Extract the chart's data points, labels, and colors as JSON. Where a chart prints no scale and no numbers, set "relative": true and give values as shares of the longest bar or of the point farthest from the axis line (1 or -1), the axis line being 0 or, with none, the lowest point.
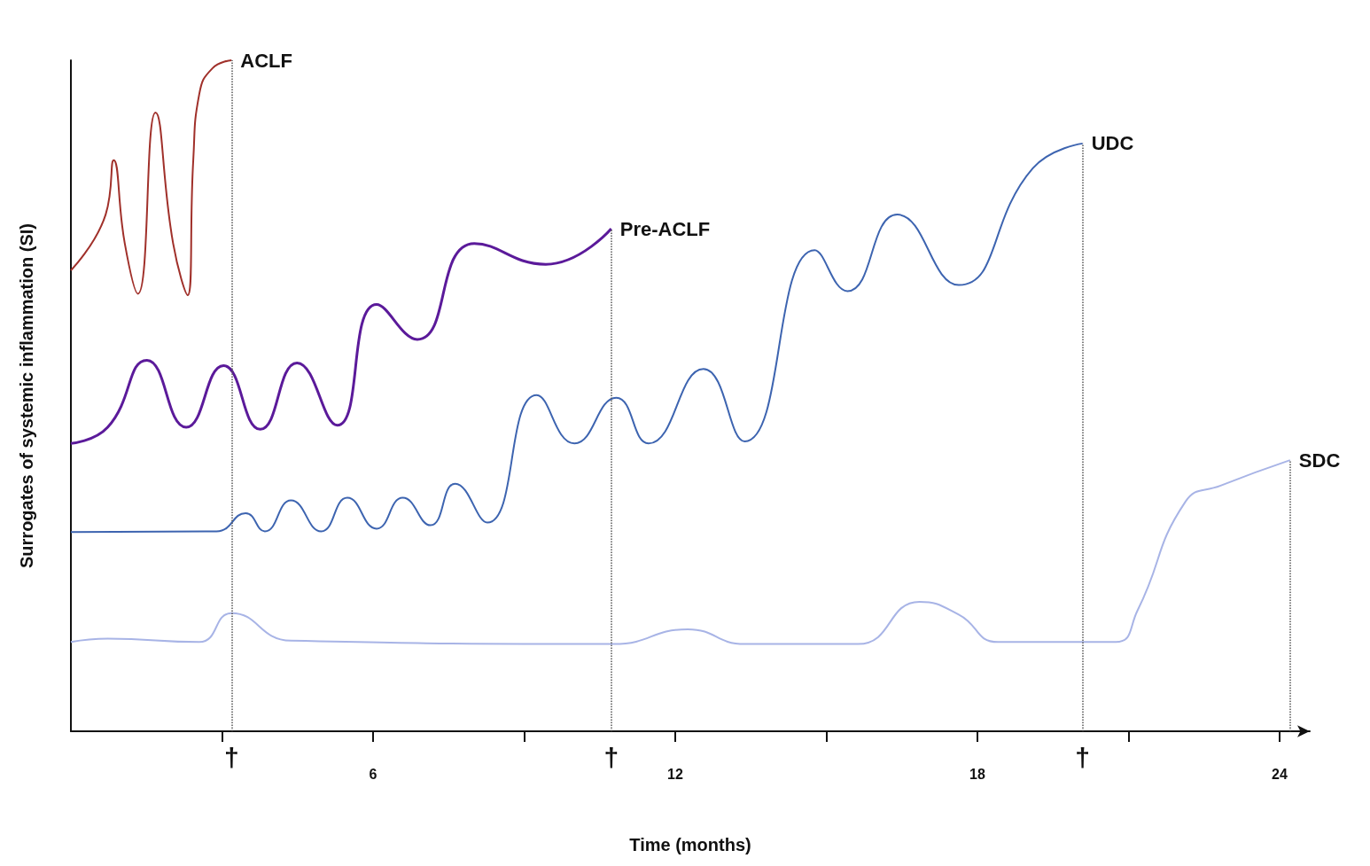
{
  "chart_data": {
    "type": "line",
    "relative": true,
    "xlabel": "Time (months)",
    "ylabel": "Surrogates of systemic inflammation (SI)",
    "marker": "none",
    "legend": false,
    "grid": false,
    "tick_labels": "x",
    "xlim": [
      0,
      24.6
    ],
    "xticks": [
      {
        "value": 3,
        "label": null
      },
      6,
      {
        "value": 9,
        "label": null
      },
      12,
      {
        "value": 15,
        "label": null
      },
      18,
      {
        "value": 21,
        "label": null
      },
      24
    ],
    "series": [
      {
        "name": "ACLF",
        "color": "#a0302a",
        "x": [
          0,
          0.69,
          0.85,
          1.07,
          1.33,
          1.68,
          2.03,
          2.32,
          2.43,
          2.55,
          2.81,
          3.19
        ],
        "values": [
          0.687,
          0.77,
          0.851,
          0.727,
          0.652,
          0.922,
          0.727,
          0.65,
          0.851,
          0.95,
          0.988,
          1.0
        ]
      },
      {
        "name": "Pre-ACLF",
        "color": "#5b1a9a",
        "x": [
          0,
          0.73,
          1.51,
          2.29,
          3.03,
          3.76,
          4.49,
          5.29,
          6.07,
          6.88,
          8.01,
          9.43,
          10.73
        ],
        "values": [
          0.429,
          0.453,
          0.553,
          0.453,
          0.545,
          0.45,
          0.549,
          0.456,
          0.636,
          0.584,
          0.727,
          0.696,
          0.749
        ]
      },
      {
        "name": "UDC",
        "color": "#3d64b0",
        "x": [
          0,
          2.89,
          3.47,
          3.85,
          4.37,
          4.97,
          5.49,
          6.07,
          6.59,
          7.14,
          7.63,
          8.27,
          9.25,
          10.0,
          10.83,
          11.47,
          12.56,
          13.38,
          14.77,
          15.42,
          16.41,
          17.63,
          19.1,
          20.09
        ],
        "values": [
          0.297,
          0.298,
          0.325,
          0.298,
          0.344,
          0.298,
          0.348,
          0.302,
          0.348,
          0.307,
          0.369,
          0.311,
          0.501,
          0.429,
          0.497,
          0.429,
          0.54,
          0.432,
          0.717,
          0.656,
          0.77,
          0.665,
          0.839,
          0.876
        ]
      },
      {
        "name": "SDC",
        "color": "#a8b4e6",
        "x": [
          0,
          0.73,
          2.55,
          3.19,
          4.37,
          10.78,
          12.25,
          13.38,
          15.63,
          16.85,
          17.63,
          18.41,
          20.75,
          21.18,
          22.13,
          22.83,
          24.21
        ],
        "values": [
          0.133,
          0.138,
          0.133,
          0.176,
          0.135,
          0.13,
          0.152,
          0.13,
          0.13,
          0.193,
          0.174,
          0.133,
          0.133,
          0.18,
          0.342,
          0.366,
          0.404
        ]
      }
    ],
    "ref_lines": [
      {
        "axis": "x",
        "value": 3.19,
        "label": "†",
        "color": "#555555",
        "line_style": "dotted"
      },
      {
        "axis": "x",
        "value": 10.73,
        "label": "†",
        "color": "#555555",
        "line_style": "dotted"
      },
      {
        "axis": "x",
        "value": 20.09,
        "label": "†",
        "color": "#555555",
        "line_style": "dotted"
      },
      {
        "axis": "x",
        "value": 24.21,
        "label": null,
        "color": "#555555",
        "line_style": "dotted"
      }
    ]
  }
}
